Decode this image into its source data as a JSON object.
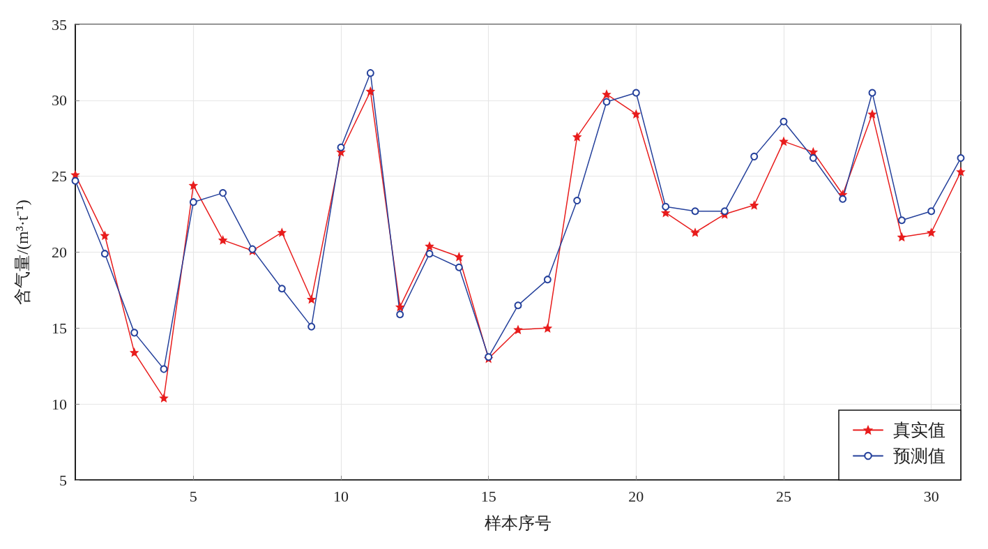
{
  "chart_data": {
    "type": "line",
    "xlabel": "样本序号",
    "ylabel": "含气量/(m³·t⁻¹)",
    "x": [
      1,
      2,
      3,
      4,
      5,
      6,
      7,
      8,
      9,
      10,
      11,
      12,
      13,
      14,
      15,
      16,
      17,
      18,
      19,
      20,
      21,
      22,
      23,
      24,
      25,
      26,
      27,
      28,
      29,
      30,
      31
    ],
    "xlim": [
      1,
      31
    ],
    "xticks": [
      5,
      10,
      15,
      20,
      25,
      30
    ],
    "ylim": [
      5,
      35
    ],
    "yticks": [
      5,
      10,
      15,
      20,
      25,
      30,
      35
    ],
    "grid": true,
    "legend": "bottom right",
    "line_style": "solid",
    "series": [
      {
        "name": "真实值",
        "color": "#e81c1c",
        "marker": "star",
        "values": [
          25.1,
          21.1,
          13.4,
          10.4,
          24.4,
          20.8,
          20.1,
          21.3,
          16.9,
          26.6,
          30.6,
          16.4,
          20.4,
          19.7,
          13.0,
          14.9,
          15.0,
          27.6,
          30.4,
          29.1,
          22.6,
          21.3,
          22.5,
          23.1,
          27.3,
          26.6,
          23.8,
          29.1,
          21.0,
          21.3,
          25.3
        ]
      },
      {
        "name": "预测值",
        "color": "#24409b",
        "marker": "circle",
        "values": [
          24.7,
          19.9,
          14.7,
          12.3,
          23.3,
          23.9,
          20.2,
          17.6,
          15.1,
          26.9,
          31.8,
          15.9,
          19.9,
          19.0,
          13.1,
          16.5,
          18.2,
          23.4,
          29.9,
          30.5,
          23.0,
          22.7,
          22.7,
          26.3,
          28.6,
          26.2,
          23.5,
          30.5,
          22.1,
          22.7,
          26.2
        ]
      }
    ]
  }
}
